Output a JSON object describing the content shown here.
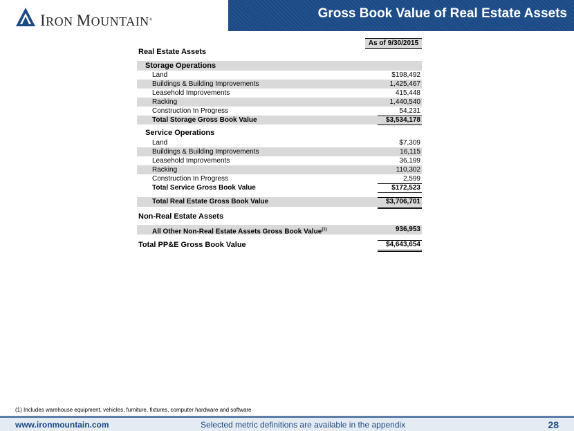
{
  "header": {
    "logo_text_first": "I",
    "logo_text_rest": "RON ",
    "logo_text_m": "M",
    "logo_text_rest2": "OUNTAIN",
    "logo_reg": "®",
    "title": "Gross Book Value of Real Estate Assets",
    "band_color": "#1b4a86"
  },
  "table": {
    "column_header": "As of 9/30/2015",
    "real_estate_title": "Real Estate Assets",
    "storage": {
      "title": "Storage Operations",
      "rows": [
        {
          "label": "Land",
          "value": "$198,492"
        },
        {
          "label": "Buildings & Building Improvements",
          "value": "1,425,467"
        },
        {
          "label": "Leasehold Improvements",
          "value": "415,448"
        },
        {
          "label": "Racking",
          "value": "1,440,540"
        },
        {
          "label": "Construction In Progress",
          "value": "54,231"
        }
      ],
      "total_label": "Total Storage Gross Book Value",
      "total_value": "$3,534,178"
    },
    "service": {
      "title": "Service Operations",
      "rows": [
        {
          "label": "Land",
          "value": "$7,309"
        },
        {
          "label": "Buildings & Building Improvements",
          "value": "16,115"
        },
        {
          "label": "Leasehold Improvements",
          "value": "36,199"
        },
        {
          "label": "Racking",
          "value": "110,302"
        },
        {
          "label": "Construction In Progress",
          "value": "2,599"
        }
      ],
      "total_label": "Total Service Gross Book Value",
      "total_value": "$172,523"
    },
    "total_real_estate_label": "Total Real Estate Gross Book Value",
    "total_real_estate_value": "$3,706,701",
    "non_real_estate_title": "Non-Real Estate Assets",
    "other_label": "All Other Non-Real Estate Assets Gross Book Value",
    "other_sup": "(1)",
    "other_value": "936,953",
    "total_ppe_label": "Total PP&E Gross Book Value",
    "total_ppe_value": "$4,643,654"
  },
  "footnote": "(1) Includes warehouse equipment, vehicles, furniture, fixtures, computer hardware and software",
  "footer": {
    "url": "www.ironmountain.com",
    "note": "Selected metric definitions are available in the appendix",
    "page": "28"
  }
}
